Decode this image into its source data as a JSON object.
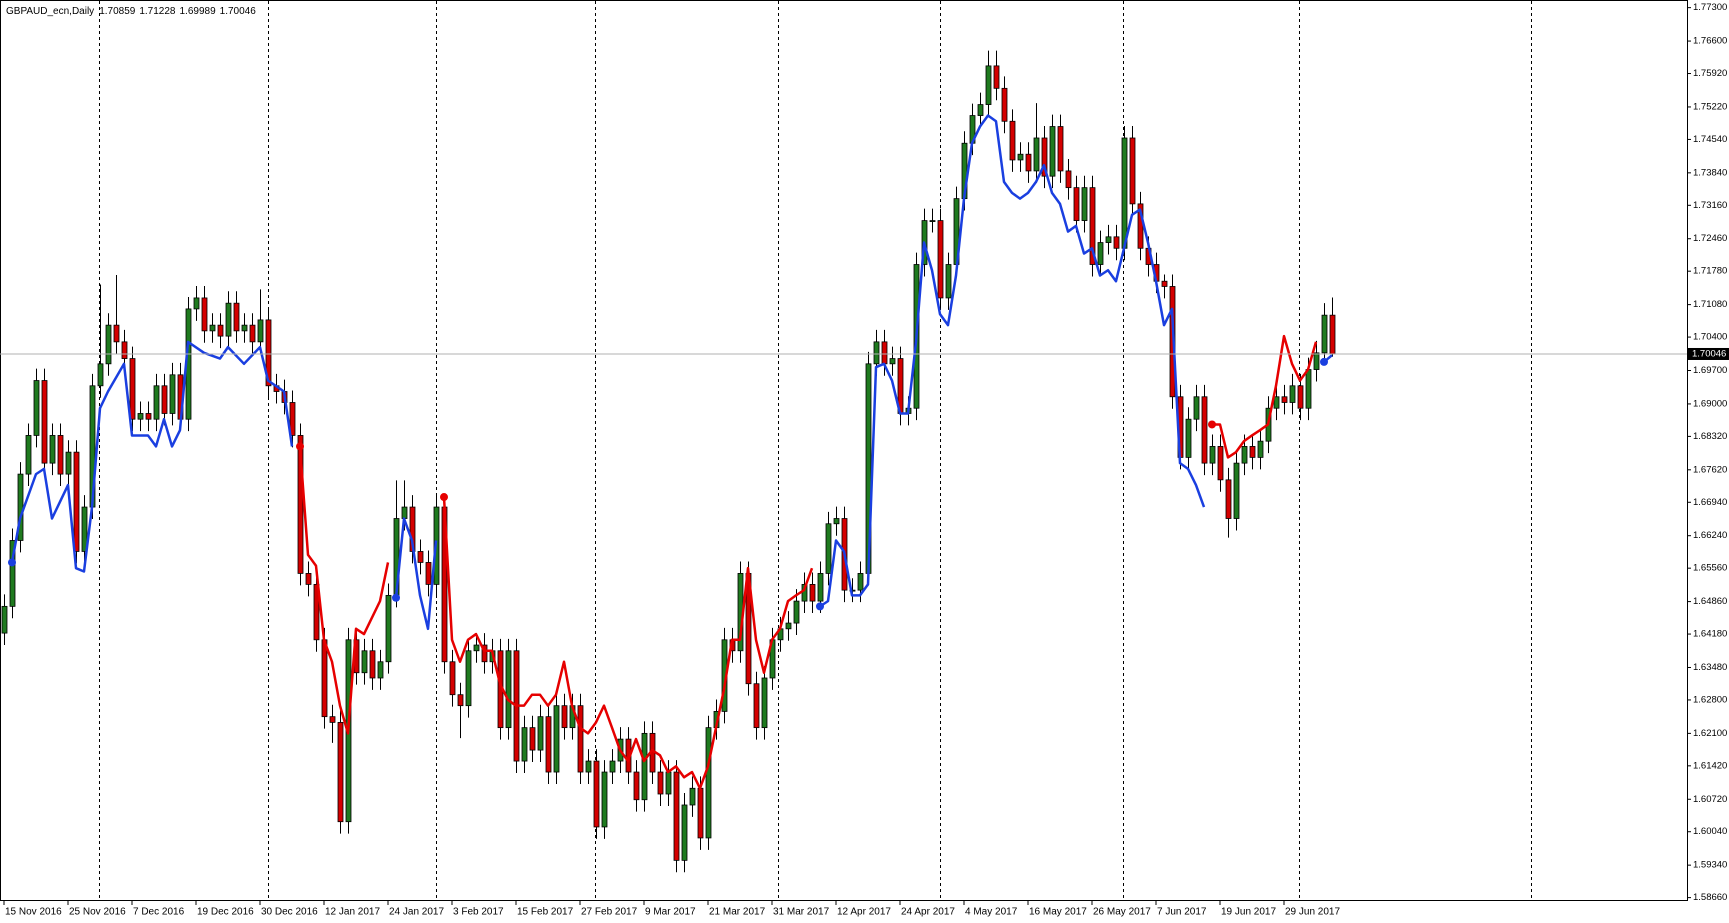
{
  "chart_data": {
    "type": "candlestick",
    "title": "GBPAUD_ecn,Daily",
    "up_color": "#1f7a1f",
    "down_color": "#d40000",
    "wick_color": "#000000",
    "ylim": [
      1.5861,
      1.7746
    ],
    "yticks": [
      {
        "value": 1.773,
        "label": "1.77300"
      },
      {
        "value": 1.766,
        "label": "1.76600"
      },
      {
        "value": 1.7592,
        "label": "1.75920"
      },
      {
        "value": 1.7522,
        "label": "1.75220"
      },
      {
        "value": 1.7454,
        "label": "1.74540"
      },
      {
        "value": 1.7384,
        "label": "1.73840"
      },
      {
        "value": 1.7316,
        "label": "1.73160"
      },
      {
        "value": 1.7246,
        "label": "1.72460"
      },
      {
        "value": 1.7178,
        "label": "1.71780"
      },
      {
        "value": 1.7108,
        "label": "1.71080"
      },
      {
        "value": 1.704,
        "label": "1.70400"
      },
      {
        "value": 1.697,
        "label": "1.69700"
      },
      {
        "value": 1.69,
        "label": "1.69000"
      },
      {
        "value": 1.6832,
        "label": "1.68320"
      },
      {
        "value": 1.6762,
        "label": "1.67620"
      },
      {
        "value": 1.6694,
        "label": "1.66940"
      },
      {
        "value": 1.6624,
        "label": "1.66240"
      },
      {
        "value": 1.6556,
        "label": "1.65560"
      },
      {
        "value": 1.6486,
        "label": "1.64860"
      },
      {
        "value": 1.6418,
        "label": "1.64180"
      },
      {
        "value": 1.6348,
        "label": "1.63480"
      },
      {
        "value": 1.628,
        "label": "1.62800"
      },
      {
        "value": 1.621,
        "label": "1.62100"
      },
      {
        "value": 1.6142,
        "label": "1.61420"
      },
      {
        "value": 1.6072,
        "label": "1.60720"
      },
      {
        "value": 1.6004,
        "label": "1.60040"
      },
      {
        "value": 1.5934,
        "label": "1.59340"
      },
      {
        "value": 1.5866,
        "label": "1.58660"
      }
    ],
    "categories": [
      "15 Nov 2016",
      null,
      null,
      null,
      null,
      null,
      null,
      null,
      "25 Nov 2016",
      null,
      null,
      null,
      null,
      null,
      null,
      null,
      "7 Dec 2016",
      null,
      null,
      null,
      null,
      null,
      null,
      null,
      "19 Dec 2016",
      null,
      null,
      null,
      null,
      null,
      null,
      null,
      "30 Dec 2016",
      null,
      null,
      null,
      null,
      null,
      null,
      null,
      "12 Jan 2017",
      null,
      null,
      null,
      null,
      null,
      null,
      null,
      "24 Jan 2017",
      null,
      null,
      null,
      null,
      null,
      null,
      null,
      "3 Feb 2017",
      null,
      null,
      null,
      null,
      null,
      null,
      null,
      "15 Feb 2017",
      null,
      null,
      null,
      null,
      null,
      null,
      null,
      "27 Feb 2017",
      null,
      null,
      null,
      null,
      null,
      null,
      null,
      "9 Mar 2017",
      null,
      null,
      null,
      null,
      null,
      null,
      null,
      "21 Mar 2017",
      null,
      null,
      null,
      null,
      null,
      null,
      null,
      "31 Mar 2017",
      null,
      null,
      null,
      null,
      null,
      null,
      null,
      "12 Apr 2017",
      null,
      null,
      null,
      null,
      null,
      null,
      null,
      "24 Apr 2017",
      null,
      null,
      null,
      null,
      null,
      null,
      null,
      "4 May 2017",
      null,
      null,
      null,
      null,
      null,
      null,
      null,
      "16 May 2017",
      null,
      null,
      null,
      null,
      null,
      null,
      null,
      "26 May 2017",
      null,
      null,
      null,
      null,
      null,
      null,
      null,
      "7 Jun 2017",
      null,
      null,
      null,
      null,
      null,
      null,
      null,
      "19 Jun 2017",
      null,
      null,
      null,
      null,
      null,
      null,
      null,
      "29 Jun 2017",
      null,
      null,
      null,
      null,
      null,
      null
    ],
    "open": [
      1.642,
      1.6476,
      1.6614,
      1.6753,
      1.6834,
      1.6949,
      1.6776,
      1.6834,
      1.6753,
      1.6799,
      1.6591,
      1.6684,
      1.6938,
      1.6984,
      1.7065,
      1.703,
      1.6995,
      1.6868,
      1.688,
      1.6868,
      1.6938,
      1.688,
      1.6961,
      1.6868,
      1.7099,
      1.7122,
      1.7053,
      1.7065,
      1.7042,
      1.7111,
      1.7053,
      1.7065,
      1.703,
      1.7076,
      1.6938,
      1.6926,
      1.6903,
      1.6834,
      1.6545,
      1.6522,
      1.6406,
      1.6245,
      1.6233,
      1.6025,
      1.6406,
      1.6337,
      1.6383,
      1.6326,
      1.636,
      1.6499,
      1.666,
      1.6684,
      1.6591,
      1.6568,
      1.6522,
      1.6684,
      1.636,
      1.6291,
      1.6268,
      1.6383,
      1.6395,
      1.636,
      1.6383,
      1.6222,
      1.6383,
      1.6152,
      1.6222,
      1.6175,
      1.6245,
      1.6129,
      1.6268,
      1.6222,
      1.6268,
      1.6129,
      1.6152,
      1.6014,
      1.6129,
      1.6152,
      1.6198,
      1.6129,
      1.6071,
      1.621,
      1.6129,
      1.6083,
      1.6129,
      1.5944,
      1.606,
      1.6095,
      1.5991,
      1.6222,
      1.6256,
      1.6406,
      1.6383,
      1.6545,
      1.6314,
      1.6222,
      1.6326,
      1.6406,
      1.6429,
      1.6441,
      1.6487,
      1.6522,
      1.6487,
      1.6545,
      1.6649,
      1.666,
      1.651,
      1.651,
      1.6545,
      1.6984,
      1.703,
      1.6984,
      1.6995,
      1.688,
      1.6891,
      1.7192,
      1.7284,
      1.7284,
      1.7122,
      1.7192,
      1.733,
      1.7446,
      1.7504,
      1.7527,
      1.7608,
      1.7561,
      1.7492,
      1.7411,
      1.7423,
      1.7388,
      1.7457,
      1.7377,
      1.7481,
      1.7388,
      1.7353,
      1.7284,
      1.7353,
      1.7192,
      1.7238,
      1.725,
      1.7226,
      1.7457,
      1.7319,
      1.7226,
      1.7192,
      1.7157,
      1.7146,
      1.6915,
      1.6788,
      1.6868,
      1.6915,
      1.6776,
      1.6811,
      1.6741,
      1.666,
      1.6776,
      1.6811,
      1.6788,
      1.6822,
      1.6891,
      1.6915,
      1.6903,
      1.6938,
      1.6891,
      1.6972,
      1.7007,
      1.70859
    ],
    "high": [
      1.6501,
      1.6639,
      1.6778,
      1.6859,
      1.6974,
      1.6974,
      1.6859,
      1.6859,
      1.6824,
      1.6824,
      1.6709,
      1.6963,
      1.715,
      1.709,
      1.717,
      1.7055,
      1.702,
      1.6905,
      1.6905,
      1.6963,
      1.6963,
      1.6986,
      1.6986,
      1.7124,
      1.7147,
      1.7147,
      1.709,
      1.709,
      1.7136,
      1.7136,
      1.709,
      1.709,
      1.714,
      1.7101,
      1.6963,
      1.6951,
      1.6928,
      1.6859,
      1.657,
      1.6547,
      1.6431,
      1.627,
      1.6258,
      1.6431,
      1.6431,
      1.6408,
      1.6408,
      1.6385,
      1.6524,
      1.674,
      1.674,
      1.6709,
      1.6616,
      1.6593,
      1.6709,
      1.6709,
      1.6385,
      1.6316,
      1.6408,
      1.642,
      1.642,
      1.6408,
      1.6408,
      1.6408,
      1.6408,
      1.6247,
      1.6247,
      1.627,
      1.627,
      1.6293,
      1.6293,
      1.6293,
      1.6293,
      1.6177,
      1.6177,
      1.6154,
      1.6177,
      1.6223,
      1.6223,
      1.6154,
      1.6235,
      1.6235,
      1.6154,
      1.6154,
      1.6154,
      1.6085,
      1.612,
      1.612,
      1.6247,
      1.6281,
      1.6431,
      1.6431,
      1.657,
      1.657,
      1.6339,
      1.6351,
      1.6431,
      1.6454,
      1.6466,
      1.6512,
      1.6547,
      1.6547,
      1.657,
      1.6674,
      1.6685,
      1.6685,
      1.6535,
      1.657,
      1.7009,
      1.7055,
      1.7055,
      1.702,
      1.702,
      1.6916,
      1.7217,
      1.7309,
      1.7309,
      1.7309,
      1.7217,
      1.7355,
      1.7471,
      1.7529,
      1.7552,
      1.764,
      1.764,
      1.7586,
      1.7517,
      1.7448,
      1.7448,
      1.753,
      1.7482,
      1.7506,
      1.7506,
      1.7413,
      1.7378,
      1.7378,
      1.7378,
      1.7263,
      1.7275,
      1.7275,
      1.7482,
      1.7482,
      1.7344,
      1.7251,
      1.7217,
      1.7171,
      1.7171,
      1.694,
      1.6893,
      1.694,
      1.694,
      1.6836,
      1.6836,
      1.6766,
      1.6801,
      1.6836,
      1.6836,
      1.6847,
      1.6916,
      1.694,
      1.694,
      1.6963,
      1.6963,
      1.6997,
      1.7032,
      1.7111,
      1.71228
    ],
    "low": [
      1.6395,
      1.6451,
      1.6589,
      1.6728,
      1.6809,
      1.6751,
      1.6751,
      1.6728,
      1.6728,
      1.6566,
      1.6566,
      1.6659,
      1.6913,
      1.6959,
      1.7005,
      1.697,
      1.6843,
      1.6843,
      1.6843,
      1.6843,
      1.6855,
      1.6855,
      1.6843,
      1.6843,
      1.7074,
      1.7028,
      1.7028,
      1.7017,
      1.7017,
      1.7028,
      1.7028,
      1.7005,
      1.7005,
      1.6913,
      1.6901,
      1.6878,
      1.6809,
      1.652,
      1.6497,
      1.6381,
      1.622,
      1.619,
      1.6,
      1.6,
      1.6312,
      1.6312,
      1.6301,
      1.6301,
      1.6335,
      1.6474,
      1.6635,
      1.6566,
      1.6543,
      1.6497,
      1.6497,
      1.6335,
      1.6266,
      1.62,
      1.6243,
      1.6358,
      1.6335,
      1.6335,
      1.6197,
      1.6197,
      1.6127,
      1.6127,
      1.615,
      1.615,
      1.6104,
      1.6104,
      1.6197,
      1.6197,
      1.6104,
      1.6104,
      1.5989,
      1.5989,
      1.6104,
      1.6127,
      1.6104,
      1.6046,
      1.6046,
      1.6104,
      1.6058,
      1.6058,
      1.5919,
      1.5919,
      1.6035,
      1.5966,
      1.5966,
      1.6197,
      1.6231,
      1.6358,
      1.6358,
      1.6289,
      1.6197,
      1.6197,
      1.6301,
      1.6381,
      1.6404,
      1.6416,
      1.6462,
      1.6462,
      1.6462,
      1.652,
      1.6624,
      1.6485,
      1.6485,
      1.6485,
      1.652,
      1.6959,
      1.6959,
      1.6959,
      1.6855,
      1.6855,
      1.6866,
      1.7167,
      1.7259,
      1.7097,
      1.7097,
      1.7167,
      1.7305,
      1.7421,
      1.7479,
      1.7502,
      1.7536,
      1.7467,
      1.7386,
      1.7386,
      1.7363,
      1.7363,
      1.7352,
      1.7352,
      1.7363,
      1.7328,
      1.7259,
      1.7259,
      1.7167,
      1.7167,
      1.7213,
      1.7201,
      1.7201,
      1.7294,
      1.7201,
      1.7167,
      1.7132,
      1.7121,
      1.689,
      1.6763,
      1.6763,
      1.6843,
      1.6751,
      1.6751,
      1.6716,
      1.662,
      1.6635,
      1.6751,
      1.6763,
      1.6763,
      1.6797,
      1.6866,
      1.6878,
      1.6878,
      1.6866,
      1.6866,
      1.6947,
      1.6982,
      1.69989
    ],
    "close": [
      1.6476,
      1.6614,
      1.6753,
      1.6834,
      1.6949,
      1.6776,
      1.6834,
      1.6753,
      1.6799,
      1.6591,
      1.6684,
      1.6938,
      1.6984,
      1.7065,
      1.703,
      1.6995,
      1.6868,
      1.688,
      1.6868,
      1.6938,
      1.688,
      1.6961,
      1.6868,
      1.7099,
      1.7122,
      1.7053,
      1.7065,
      1.7042,
      1.7111,
      1.7053,
      1.7065,
      1.703,
      1.7076,
      1.6938,
      1.6926,
      1.6903,
      1.6834,
      1.6545,
      1.6522,
      1.6406,
      1.6245,
      1.6233,
      1.6025,
      1.6406,
      1.6337,
      1.6383,
      1.6326,
      1.636,
      1.6499,
      1.666,
      1.6684,
      1.6591,
      1.6568,
      1.6522,
      1.6684,
      1.636,
      1.6291,
      1.6268,
      1.6383,
      1.6395,
      1.636,
      1.6383,
      1.6222,
      1.6383,
      1.6152,
      1.6222,
      1.6175,
      1.6245,
      1.6129,
      1.6268,
      1.6222,
      1.6268,
      1.6129,
      1.6152,
      1.6014,
      1.6129,
      1.6152,
      1.6198,
      1.6129,
      1.6071,
      1.621,
      1.6129,
      1.6083,
      1.6129,
      1.5944,
      1.606,
      1.6095,
      1.5991,
      1.6222,
      1.6256,
      1.6406,
      1.6383,
      1.6545,
      1.6314,
      1.6222,
      1.6326,
      1.6406,
      1.6429,
      1.6441,
      1.6487,
      1.6522,
      1.6487,
      1.6545,
      1.6649,
      1.666,
      1.651,
      1.651,
      1.6545,
      1.6984,
      1.703,
      1.6984,
      1.6995,
      1.688,
      1.6891,
      1.7192,
      1.7284,
      1.7284,
      1.7122,
      1.7192,
      1.733,
      1.7446,
      1.7504,
      1.7527,
      1.7608,
      1.7561,
      1.7492,
      1.7411,
      1.7423,
      1.7388,
      1.7457,
      1.7377,
      1.7481,
      1.7388,
      1.7353,
      1.7284,
      1.7353,
      1.7192,
      1.7238,
      1.725,
      1.7226,
      1.7457,
      1.7319,
      1.7226,
      1.7192,
      1.7157,
      1.7146,
      1.6915,
      1.6788,
      1.6868,
      1.6915,
      1.6776,
      1.6811,
      1.6741,
      1.666,
      1.6776,
      1.6811,
      1.6788,
      1.6822,
      1.6891,
      1.6915,
      1.6903,
      1.6938,
      1.6891,
      1.6972,
      1.7007,
      1.70859,
      1.70046
    ],
    "indicator": [
      {
        "color": "#1a3fe0",
        "x": [
          1,
          2,
          4,
          5,
          6,
          8,
          9,
          10,
          11,
          12,
          13,
          15,
          16,
          18,
          19,
          20,
          21,
          22,
          23,
          25,
          27,
          28,
          30,
          32,
          33,
          35,
          36
        ],
        "values": [
          1.6568,
          1.666,
          1.6753,
          1.6764,
          1.666,
          1.673,
          1.6556,
          1.6549,
          1.6684,
          1.6891,
          1.6926,
          1.6984,
          1.6834,
          1.6834,
          1.6811,
          1.6868,
          1.6811,
          1.6845,
          1.703,
          1.7007,
          1.6995,
          1.7019,
          1.6984,
          1.7019,
          1.6949,
          1.6926,
          1.6811
        ]
      },
      {
        "color": "#e60000",
        "x": [
          37,
          38,
          39,
          40,
          41,
          42,
          43,
          44,
          45,
          47,
          48
        ],
        "values": [
          1.6811,
          1.6584,
          1.6561,
          1.6406,
          1.636,
          1.6268,
          1.621,
          1.6429,
          1.6418,
          1.6487,
          1.6568
        ]
      },
      {
        "color": "#1a3fe0",
        "x": [
          49,
          50,
          51,
          52,
          53,
          54
        ],
        "values": [
          1.6494,
          1.666,
          1.6614,
          1.6499,
          1.6429,
          1.6614
        ]
      },
      {
        "color": "#e60000",
        "x": [
          55,
          56,
          57,
          58,
          59,
          60,
          61,
          62,
          63,
          64,
          65,
          66,
          67,
          68,
          69,
          70,
          71,
          72,
          73,
          74,
          75,
          76,
          77,
          78,
          79,
          80,
          81,
          82,
          83,
          84,
          85,
          86,
          87,
          88,
          89,
          90,
          91,
          92,
          93,
          94,
          95,
          96,
          97,
          98,
          99,
          100,
          101
        ],
        "values": [
          1.6705,
          1.6406,
          1.636,
          1.6406,
          1.6418,
          1.6383,
          1.6383,
          1.6314,
          1.628,
          1.6268,
          1.6268,
          1.6291,
          1.6291,
          1.6268,
          1.6291,
          1.636,
          1.6268,
          1.6222,
          1.621,
          1.6233,
          1.6268,
          1.6222,
          1.6175,
          1.6152,
          1.6198,
          1.6152,
          1.6175,
          1.6164,
          1.6129,
          1.6141,
          1.6118,
          1.6129,
          1.6095,
          1.6141,
          1.6222,
          1.6302,
          1.6406,
          1.6406,
          1.6556,
          1.6406,
          1.6337,
          1.6406,
          1.6429,
          1.6487,
          1.6499,
          1.651,
          1.6556
        ]
      },
      {
        "color": "#1a3fe0",
        "x": [
          102,
          103,
          104,
          105,
          106,
          107,
          108,
          109,
          110,
          111,
          112,
          113,
          114,
          115,
          116,
          117,
          118,
          119,
          120,
          121,
          122,
          123,
          124,
          125,
          126,
          127,
          128,
          129,
          130,
          131,
          132,
          133,
          134,
          135,
          136,
          137,
          138,
          139,
          140,
          141,
          142,
          143,
          144,
          145,
          146,
          147,
          148,
          149,
          150
        ],
        "values": [
          1.6476,
          1.6487,
          1.6614,
          1.6591,
          1.6499,
          1.6499,
          1.6522,
          1.6977,
          1.6984,
          1.6949,
          1.688,
          1.688,
          1.703,
          1.7238,
          1.718,
          1.7088,
          1.7065,
          1.7169,
          1.733,
          1.7446,
          1.7481,
          1.7504,
          1.7492,
          1.7365,
          1.7342,
          1.733,
          1.7342,
          1.7365,
          1.74,
          1.7342,
          1.7319,
          1.7261,
          1.7273,
          1.7215,
          1.7226,
          1.7169,
          1.718,
          1.7157,
          1.7226,
          1.7296,
          1.7307,
          1.7238,
          1.7157,
          1.7065,
          1.7099,
          1.6776,
          1.6764,
          1.673,
          1.6684
        ]
      },
      {
        "color": "#e60000",
        "x": [
          151,
          152,
          153,
          154,
          155,
          156,
          157,
          158,
          159,
          160,
          161,
          162,
          163,
          164
        ],
        "values": [
          1.6857,
          1.6857,
          1.6788,
          1.6799,
          1.6822,
          1.6834,
          1.6845,
          1.6857,
          1.6938,
          1.7042,
          1.6984,
          1.6949,
          1.6972,
          1.703
        ]
      },
      {
        "color": "#1a3fe0",
        "x": [
          165,
          166
        ],
        "values": [
          1.6988,
          1.7002
        ]
      }
    ]
  }
}
